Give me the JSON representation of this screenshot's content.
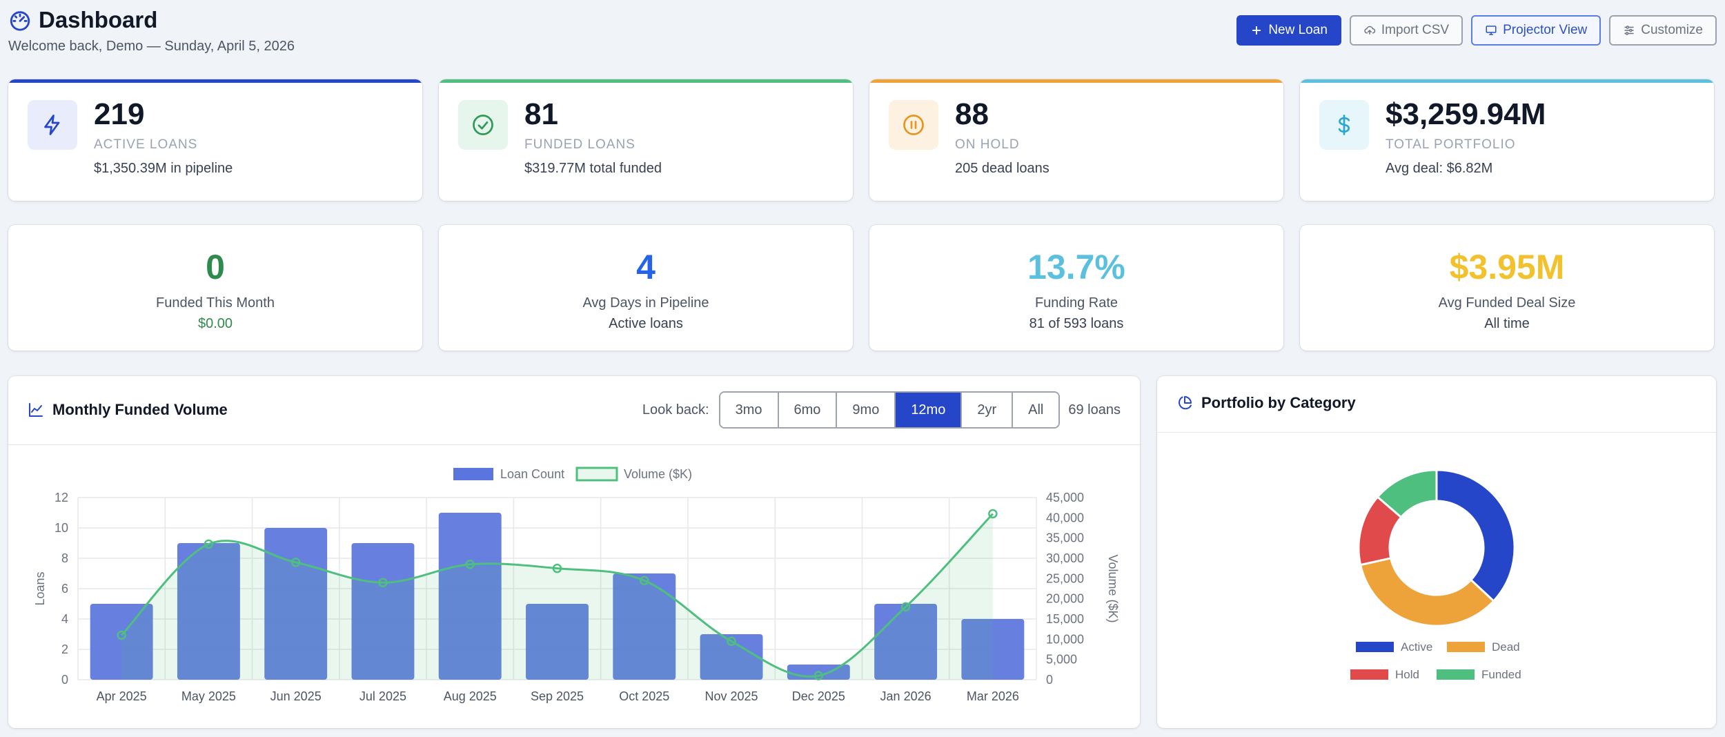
{
  "header": {
    "title": "Dashboard",
    "subtitle": "Welcome back, Demo — Sunday, April 5, 2026",
    "buttons": {
      "new_loan": "New Loan",
      "import_csv": "Import CSV",
      "projector_view": "Projector View",
      "customize": "Customize"
    }
  },
  "stats": [
    {
      "value": "219",
      "label": "ACTIVE LOANS",
      "sub": "$1,350.39M in pipeline",
      "accent": "#2546c9",
      "icon": "lightning-icon"
    },
    {
      "value": "81",
      "label": "FUNDED LOANS",
      "sub": "$319.77M total funded",
      "accent": "#4fbf7f",
      "icon": "check-circle-icon"
    },
    {
      "value": "88",
      "label": "ON HOLD",
      "sub": "205 dead loans",
      "accent": "#eea33a",
      "icon": "pause-circle-icon"
    },
    {
      "value": "$3,259.94M",
      "label": "TOTAL PORTFOLIO",
      "sub": "Avg deal: $6.82M",
      "accent": "#5bc0de",
      "icon": "dollar-icon"
    }
  ],
  "kpis": [
    {
      "value": "0",
      "label": "Funded This Month",
      "sub": "$0.00",
      "color": "#2f8a4e",
      "sub_color": "#2f8a4e"
    },
    {
      "value": "4",
      "label": "Avg Days in Pipeline",
      "sub": "Active loans",
      "color": "#2563eb",
      "sub_color": "#374151"
    },
    {
      "value": "13.7%",
      "label": "Funding Rate",
      "sub": "81 of 593 loans",
      "color": "#5bc0de",
      "sub_color": "#374151"
    },
    {
      "value": "$3.95M",
      "label": "Avg Funded Deal Size",
      "sub": "All time",
      "color": "#f2c12e",
      "sub_color": "#374151"
    }
  ],
  "monthly_chart": {
    "title": "Monthly Funded Volume",
    "lookback_label": "Look back:",
    "lookback_options": [
      "3mo",
      "6mo",
      "9mo",
      "12mo",
      "2yr",
      "All"
    ],
    "lookback_selected": "12mo",
    "loan_count_label": "69 loans"
  },
  "pie_chart": {
    "title": "Portfolio by Category"
  },
  "chart_data": [
    {
      "type": "bar",
      "title": "Monthly Funded Volume",
      "categories": [
        "Apr 2025",
        "May 2025",
        "Jun 2025",
        "Jul 2025",
        "Aug 2025",
        "Sep 2025",
        "Oct 2025",
        "Nov 2025",
        "Dec 2025",
        "Jan 2026",
        "Mar 2026"
      ],
      "series": [
        {
          "name": "Loan Count",
          "type": "bar",
          "axis": "left",
          "color": "#5a75dd",
          "values": [
            5,
            9,
            10,
            9,
            11,
            5,
            7,
            3,
            1,
            5,
            4
          ]
        },
        {
          "name": "Volume ($K)",
          "type": "area",
          "axis": "right",
          "color": "#4fbf7f",
          "values": [
            11000,
            33500,
            29000,
            24000,
            28500,
            27500,
            24500,
            9500,
            1000,
            18000,
            41000
          ]
        }
      ],
      "ylabel": "Loans",
      "y2label": "Volume ($K)",
      "ylim": [
        0,
        12
      ],
      "y2lim": [
        0,
        45000
      ],
      "yticks": [
        "0",
        "2",
        "4",
        "6",
        "8",
        "10",
        "12"
      ],
      "y2ticks": [
        "0",
        "5,000",
        "10,000",
        "15,000",
        "20,000",
        "25,000",
        "30,000",
        "35,000",
        "40,000",
        "45,000"
      ],
      "legend_position": "top"
    },
    {
      "type": "pie",
      "title": "Portfolio by Category",
      "categories": [
        "Active",
        "Dead",
        "Hold",
        "Funded"
      ],
      "values": [
        219,
        205,
        88,
        81
      ],
      "colors": [
        "#2546c9",
        "#eea33a",
        "#e04a4a",
        "#4fbf7f"
      ],
      "legend_position": "bottom"
    }
  ]
}
